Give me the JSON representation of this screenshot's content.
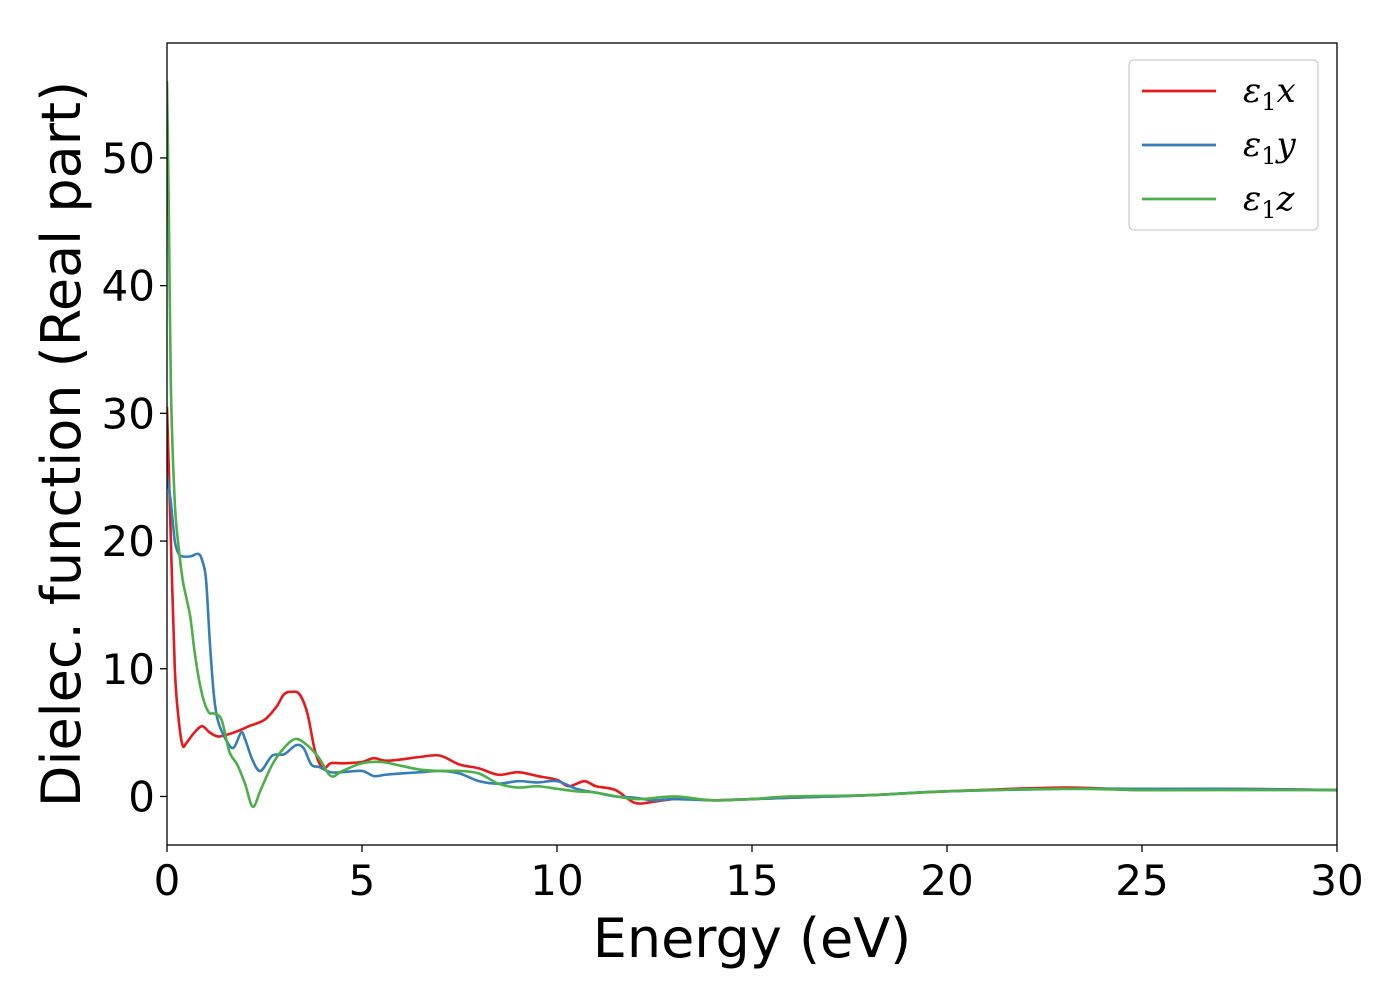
{
  "chart_data": {
    "type": "line",
    "title": "",
    "xlabel": "Energy (eV)",
    "ylabel": "Dielec. function (Real part)",
    "xlim": [
      0,
      30
    ],
    "ylim": [
      -3.8,
      59
    ],
    "xticks": [
      0,
      5,
      10,
      15,
      20,
      25,
      30
    ],
    "xtick_labels": [
      "0",
      "5",
      "10",
      "15",
      "20",
      "25",
      "30"
    ],
    "yticks": [
      0,
      10,
      20,
      30,
      40,
      50
    ],
    "ytick_labels": [
      "0",
      "10",
      "20",
      "30",
      "40",
      "50"
    ],
    "grid": false,
    "legend_position": "top-right",
    "series": [
      {
        "name": "ε₁x",
        "label_main": "ε",
        "label_sub": "1",
        "label_tail": "x",
        "color": "#e41a1c",
        "x": [
          0,
          0.1,
          0.2,
          0.3,
          0.4,
          0.5,
          0.7,
          0.9,
          1.1,
          1.3,
          1.5,
          1.8,
          2.1,
          2.5,
          2.8,
          3.0,
          3.2,
          3.4,
          3.6,
          3.8,
          4.0,
          4.2,
          4.5,
          5.0,
          5.3,
          5.6,
          6.0,
          6.5,
          7.0,
          7.5,
          8.0,
          8.5,
          9.0,
          9.5,
          10.0,
          10.3,
          10.7,
          11.0,
          11.5,
          12.0,
          12.5,
          13.0,
          13.5,
          14.0,
          15.0,
          16.0,
          17.0,
          18.0,
          20.0,
          23.0,
          25.0,
          27.0,
          30.0
        ],
        "y": [
          30.5,
          20.0,
          10.0,
          6.0,
          4.0,
          4.2,
          5.0,
          5.5,
          5.0,
          4.7,
          4.8,
          5.1,
          5.5,
          6.0,
          7.0,
          8.0,
          8.2,
          8.0,
          6.5,
          3.5,
          2.2,
          2.6,
          2.6,
          2.7,
          3.0,
          2.8,
          2.9,
          3.1,
          3.2,
          2.5,
          2.2,
          1.7,
          1.9,
          1.6,
          1.3,
          0.8,
          1.2,
          0.8,
          0.5,
          -0.5,
          -0.4,
          -0.2,
          -0.2,
          -0.3,
          -0.2,
          -0.1,
          0.0,
          0.1,
          0.4,
          0.7,
          0.5,
          0.6,
          0.5
        ]
      },
      {
        "name": "ε₁y",
        "label_main": "ε",
        "label_sub": "1",
        "label_tail": "y",
        "color": "#377eb8",
        "x": [
          0,
          0.1,
          0.2,
          0.3,
          0.4,
          0.6,
          0.8,
          0.9,
          1.0,
          1.1,
          1.2,
          1.3,
          1.5,
          1.7,
          1.9,
          2.0,
          2.2,
          2.4,
          2.7,
          3.0,
          3.3,
          3.5,
          3.7,
          3.9,
          4.2,
          4.5,
          5.0,
          5.3,
          5.6,
          6.0,
          6.5,
          7.0,
          7.5,
          8.0,
          8.5,
          9.0,
          9.5,
          10.0,
          10.5,
          11.0,
          11.5,
          12.0,
          12.5,
          13.0,
          14.0,
          15.0,
          16.0,
          18.0,
          20.0,
          23.0,
          25.0,
          27.0,
          30.0
        ],
        "y": [
          25.2,
          23.0,
          20.0,
          19.0,
          18.8,
          18.8,
          19.0,
          18.5,
          17.0,
          12.0,
          8.0,
          6.0,
          4.5,
          3.8,
          5.0,
          4.5,
          2.8,
          2.0,
          3.2,
          3.3,
          4.0,
          3.8,
          2.5,
          2.3,
          1.9,
          1.9,
          2.0,
          1.6,
          1.7,
          1.8,
          1.9,
          2.0,
          1.8,
          1.2,
          1.0,
          1.2,
          1.1,
          1.2,
          0.6,
          0.3,
          0.0,
          -0.1,
          -0.3,
          -0.2,
          -0.3,
          -0.2,
          -0.1,
          0.1,
          0.4,
          0.6,
          0.6,
          0.6,
          0.5
        ]
      },
      {
        "name": "ε₁z",
        "label_main": "ε",
        "label_sub": "1",
        "label_tail": "z",
        "color": "#4daf4a",
        "x": [
          0,
          0.05,
          0.1,
          0.2,
          0.3,
          0.4,
          0.5,
          0.6,
          0.7,
          0.8,
          0.9,
          1.0,
          1.1,
          1.2,
          1.4,
          1.6,
          1.8,
          2.0,
          2.2,
          2.4,
          2.7,
          3.0,
          3.3,
          3.6,
          3.9,
          4.2,
          4.5,
          5.0,
          5.5,
          6.0,
          6.5,
          7.0,
          7.5,
          8.0,
          8.5,
          9.0,
          9.5,
          10.0,
          10.5,
          11.0,
          12.0,
          13.0,
          14.0,
          15.0,
          16.0,
          18.0,
          20.0,
          23.0,
          25.0,
          27.0,
          30.0
        ],
        "y": [
          56.0,
          45.0,
          32.0,
          23.0,
          19.5,
          17.0,
          15.5,
          14.0,
          11.5,
          9.5,
          8.0,
          7.0,
          6.5,
          6.5,
          6.0,
          3.5,
          2.5,
          1.0,
          -0.8,
          0.5,
          2.5,
          3.8,
          4.5,
          4.0,
          3.0,
          1.6,
          2.0,
          2.6,
          2.7,
          2.4,
          2.1,
          2.0,
          2.0,
          1.8,
          1.0,
          0.7,
          0.8,
          0.6,
          0.4,
          0.3,
          -0.2,
          0.0,
          -0.3,
          -0.2,
          0.0,
          0.1,
          0.4,
          0.6,
          0.5,
          0.5,
          0.5
        ]
      }
    ]
  }
}
